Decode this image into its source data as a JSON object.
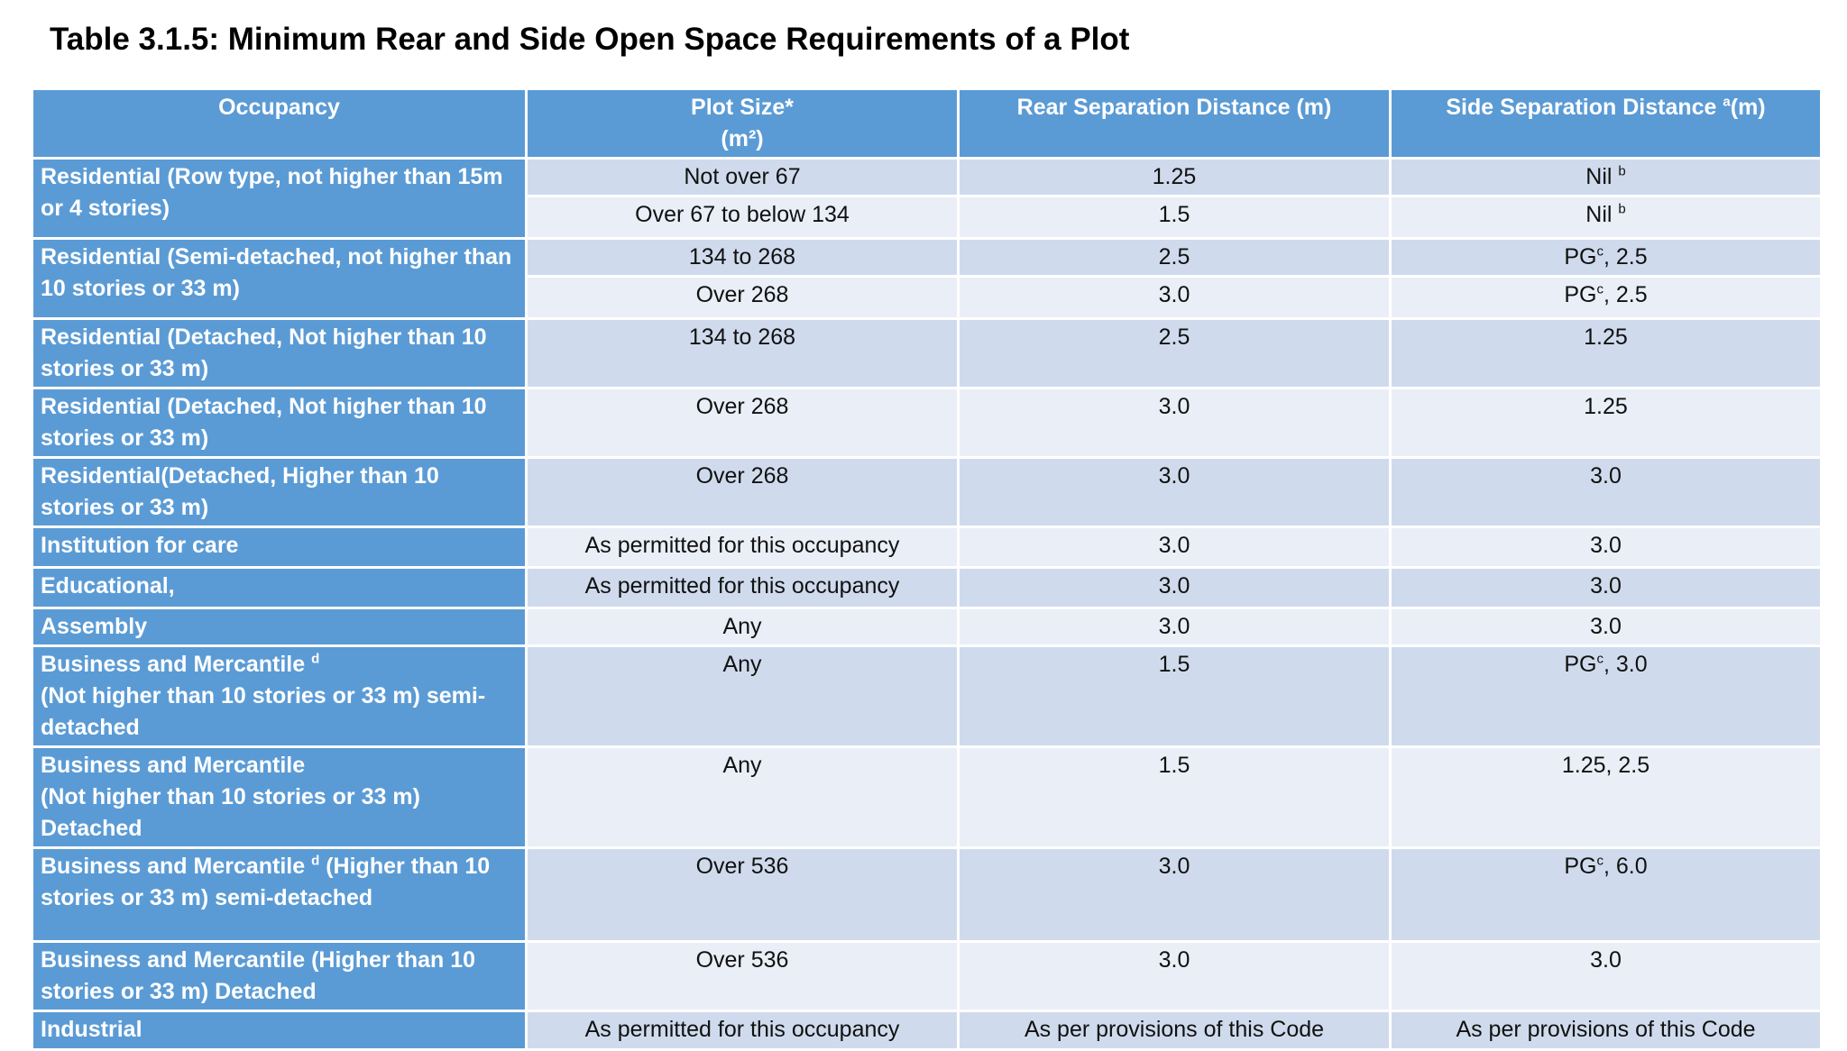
{
  "title": "Table 3.1.5: Minimum Rear and Side Open Space Requirements of a Plot",
  "table": {
    "header": [
      "Occupancy",
      "Plot Size*\n(m²)",
      "Rear Separation Distance  (m)",
      [
        {
          "text": "Side Separation Distance "
        },
        {
          "sup": "a"
        },
        {
          "text": "(m)"
        }
      ]
    ],
    "groups": [
      {
        "occupancy": "Residential (Row type, not higher than 15m or 4 stories)",
        "rows": [
          [
            "Not over 67",
            "1.25",
            [
              {
                "text": "Nil "
              },
              {
                "sup": "b"
              }
            ]
          ],
          [
            "Over 67 to below 134",
            "1.5",
            [
              {
                "text": "Nil "
              },
              {
                "sup": "b"
              }
            ]
          ]
        ]
      },
      {
        "occupancy": "Residential (Semi-detached, not higher than 10 stories or 33 m)",
        "rows": [
          [
            "134 to 268",
            "2.5",
            [
              {
                "text": "PG"
              },
              {
                "sup": "c"
              },
              {
                "text": ", 2.5"
              }
            ]
          ],
          [
            "Over 268",
            "3.0",
            [
              {
                "text": "PG"
              },
              {
                "sup": "c"
              },
              {
                "text": ", 2.5"
              }
            ]
          ]
        ]
      },
      {
        "occupancy": "Residential (Detached, Not higher than 10 stories or 33 m)",
        "rows": [
          [
            "134 to 268",
            "2.5",
            "1.25"
          ]
        ]
      },
      {
        "occupancy": "Residential (Detached, Not higher than 10 stories or 33 m)",
        "rows": [
          [
            "Over 268",
            "3.0",
            "1.25"
          ]
        ]
      },
      {
        "occupancy": "Residential(Detached, Higher than 10 stories or 33 m)",
        "rows": [
          [
            "Over 268",
            "3.0",
            "3.0"
          ]
        ]
      },
      {
        "occupancy": "Institution for care",
        "rows": [
          [
            "As permitted for this occupancy",
            "3.0",
            "3.0"
          ]
        ]
      },
      {
        "occupancy": "Educational,",
        "rows": [
          [
            "As permitted for this occupancy",
            "3.0",
            "3.0"
          ]
        ]
      },
      {
        "occupancy": "Assembly",
        "rows": [
          [
            "Any",
            "3.0",
            "3.0"
          ]
        ]
      },
      {
        "occupancy": [
          {
            "text": "Business and Mercantile "
          },
          {
            "sup": "d"
          },
          {
            "text": "\n(Not higher than 10 stories or 33 m) semi-detached"
          }
        ],
        "rows": [
          [
            "Any",
            "1.5",
            [
              {
                "text": "PG"
              },
              {
                "sup": "c"
              },
              {
                "text": ", 3.0"
              }
            ]
          ]
        ]
      },
      {
        "occupancy": "Business and Mercantile\n(Not higher than 10 stories or 33 m)\nDetached",
        "rows": [
          [
            "Any",
            "1.5",
            "1.25, 2.5"
          ]
        ]
      },
      {
        "occupancy": [
          {
            "text": "Business and Mercantile "
          },
          {
            "sup": "d"
          },
          {
            "text": " (Higher than 10 stories or 33 m) semi-detached"
          }
        ],
        "rows": [
          [
            "Over 536",
            "3.0",
            [
              {
                "text": "PG"
              },
              {
                "sup": "c"
              },
              {
                "text": ", 6.0"
              }
            ]
          ]
        ]
      },
      {
        "occupancy": "Business and Mercantile (Higher than 10 stories or 33 m) Detached",
        "rows": [
          [
            "Over 536",
            "3.0",
            "3.0"
          ]
        ]
      },
      {
        "occupancy": "Industrial",
        "rows": [
          [
            "As permitted for this occupancy",
            "As per provisions of this Code",
            "As per provisions of this Code"
          ]
        ]
      }
    ]
  }
}
